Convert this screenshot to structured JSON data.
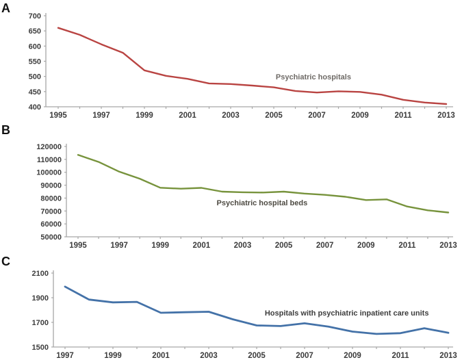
{
  "figure_title": "",
  "chart_data": [
    {
      "type": "line",
      "panel_letter": "A",
      "series_label": "Psychiatric hospitals",
      "color": "#b94442",
      "label_color": "#6e6a66",
      "x": [
        1995,
        1996,
        1997,
        1998,
        1999,
        2000,
        2001,
        2002,
        2003,
        2004,
        2005,
        2006,
        2007,
        2008,
        2009,
        2010,
        2011,
        2012,
        2013
      ],
      "values": [
        660,
        637,
        606,
        578,
        520,
        502,
        492,
        477,
        475,
        470,
        464,
        452,
        447,
        451,
        449,
        440,
        423,
        414,
        409
      ],
      "xlabel": "",
      "ylabel": "",
      "ylim": [
        400,
        700
      ],
      "ytick_step": 50,
      "xtick_labels": [
        1995,
        1997,
        1999,
        2001,
        2003,
        2005,
        2007,
        2009,
        2011,
        2013
      ],
      "grid": false,
      "legend_position": "inline-annotation",
      "label_pos": {
        "fx": 0.657,
        "fy": 0.7
      }
    },
    {
      "type": "line",
      "panel_letter": "B",
      "series_label": "Psychiatric hospital beds",
      "color": "#77933c",
      "label_color": "#4d4a42",
      "x": [
        1995,
        1996,
        1997,
        1998,
        1999,
        2000,
        2001,
        2002,
        2003,
        2004,
        2005,
        2006,
        2007,
        2008,
        2009,
        2010,
        2011,
        2012,
        2013
      ],
      "values": [
        113500,
        108000,
        100500,
        95000,
        88000,
        87300,
        87900,
        85000,
        84500,
        84300,
        85000,
        83500,
        82500,
        81000,
        78500,
        79000,
        73500,
        70500,
        68800
      ],
      "xlabel": "",
      "ylabel": "",
      "ylim": [
        50000,
        120000
      ],
      "ytick_step": 10000,
      "xtick_labels": [
        1995,
        1997,
        1999,
        2001,
        2003,
        2005,
        2007,
        2009,
        2011,
        2013
      ],
      "grid": false,
      "legend_position": "inline-annotation",
      "label_pos": {
        "fx": 0.506,
        "fy": 0.652
      }
    },
    {
      "type": "line",
      "panel_letter": "C",
      "series_label": "Hospitals with psychiatric inpatient care units",
      "color": "#4472a8",
      "label_color": "#3d3d3d",
      "x": [
        1997,
        1998,
        1999,
        2000,
        2001,
        2002,
        2003,
        2004,
        2005,
        2006,
        2007,
        2008,
        2009,
        2010,
        2011,
        2012,
        2013
      ],
      "values": [
        1990,
        1885,
        1862,
        1866,
        1778,
        1782,
        1786,
        1725,
        1675,
        1670,
        1692,
        1665,
        1625,
        1606,
        1612,
        1652,
        1615
      ],
      "xlabel": "",
      "ylabel": "",
      "ylim": [
        1500,
        2100
      ],
      "ytick_step": 200,
      "xtick_labels": [
        1997,
        1999,
        2001,
        2003,
        2005,
        2007,
        2009,
        2011,
        2013
      ],
      "grid": false,
      "legend_position": "inline-annotation",
      "label_pos": {
        "fx": 0.734,
        "fy": 0.574
      }
    }
  ]
}
